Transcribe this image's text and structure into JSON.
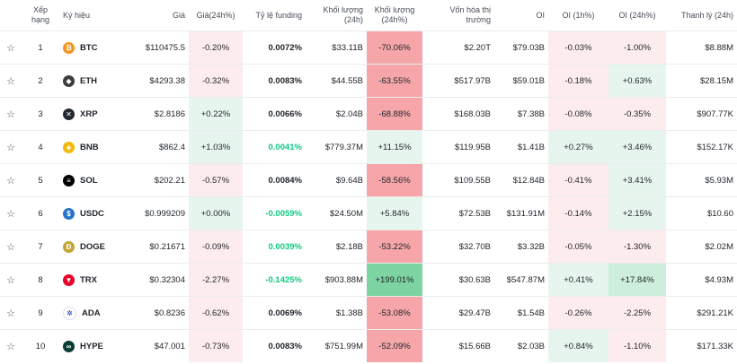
{
  "headers": {
    "rank": "Xếp hạng",
    "symbol": "Ký hiệu",
    "price": "Giá",
    "price_change": "Giá(24h%)",
    "funding": "Tỷ lệ funding",
    "volume": "Khối lượng (24h)",
    "volume_change": "Khối lượng (24h%)",
    "mcap_line1": "Vốn hóa thị",
    "mcap_line2": "trường",
    "oi": "OI",
    "oi_1h": "OI (1h%)",
    "oi_24h": "OI (24h%)",
    "liq": "Thanh lý (24h)"
  },
  "rows": [
    {
      "rank": "1",
      "symbol": "BTC",
      "icon": "bitcoin-icon",
      "icon_color": "#f7931a",
      "icon_glyph": "₿",
      "price": "$110475.5",
      "chg": "-0.20%",
      "chg_cls": "neg1",
      "fund": "0.0072%",
      "fund_pos": false,
      "vol": "$33.11B",
      "volchg": "-70.06%",
      "volchg_cls": "neg3",
      "mcap": "$2.20T",
      "oi": "$79.03B",
      "oi1h": "-0.03%",
      "oi1h_cls": "neg1",
      "oi24": "-1.00%",
      "oi24_cls": "neg1",
      "liq": "$8.88M"
    },
    {
      "rank": "2",
      "symbol": "ETH",
      "icon": "ethereum-icon",
      "icon_color": "#3c3c3d",
      "icon_glyph": "◆",
      "price": "$4293.38",
      "chg": "-0.32%",
      "chg_cls": "neg1",
      "fund": "0.0083%",
      "fund_pos": false,
      "vol": "$44.55B",
      "volchg": "-63.55%",
      "volchg_cls": "neg3",
      "mcap": "$517.97B",
      "oi": "$59.01B",
      "oi1h": "-0.18%",
      "oi1h_cls": "neg1",
      "oi24": "+0.63%",
      "oi24_cls": "pos1",
      "liq": "$28.15M"
    },
    {
      "rank": "3",
      "symbol": "XRP",
      "icon": "xrp-icon",
      "icon_color": "#23292f",
      "icon_glyph": "✕",
      "price": "$2.8186",
      "chg": "+0.22%",
      "chg_cls": "pos1",
      "fund": "0.0066%",
      "fund_pos": false,
      "vol": "$2.04B",
      "volchg": "-68.88%",
      "volchg_cls": "neg3",
      "mcap": "$168.03B",
      "oi": "$7.38B",
      "oi1h": "-0.08%",
      "oi1h_cls": "neg1",
      "oi24": "-0.35%",
      "oi24_cls": "neg1",
      "liq": "$907.77K"
    },
    {
      "rank": "4",
      "symbol": "BNB",
      "icon": "bnb-icon",
      "icon_color": "#f0b90b",
      "icon_glyph": "◈",
      "price": "$862.4",
      "chg": "+1.03%",
      "chg_cls": "pos1",
      "fund": "0.0041%",
      "fund_pos": true,
      "vol": "$779.37M",
      "volchg": "+11.15%",
      "volchg_cls": "pos1",
      "mcap": "$119.95B",
      "oi": "$1.41B",
      "oi1h": "+0.27%",
      "oi1h_cls": "pos1",
      "oi24": "+3.46%",
      "oi24_cls": "pos1",
      "liq": "$152.17K"
    },
    {
      "rank": "5",
      "symbol": "SOL",
      "icon": "solana-icon",
      "icon_color": "#000000",
      "icon_glyph": "≡",
      "price": "$202.21",
      "chg": "-0.57%",
      "chg_cls": "neg1",
      "fund": "0.0084%",
      "fund_pos": false,
      "vol": "$9.64B",
      "volchg": "-58.56%",
      "volchg_cls": "neg3",
      "mcap": "$109.55B",
      "oi": "$12.84B",
      "oi1h": "-0.41%",
      "oi1h_cls": "neg1",
      "oi24": "+3.41%",
      "oi24_cls": "pos1",
      "liq": "$5.93M"
    },
    {
      "rank": "6",
      "symbol": "USDC",
      "icon": "usdc-icon",
      "icon_color": "#2775ca",
      "icon_glyph": "$",
      "price": "$0.999209",
      "chg": "+0.00%",
      "chg_cls": "pos1",
      "fund": "-0.0059%",
      "fund_pos": true,
      "vol": "$24.50M",
      "volchg": "+5.84%",
      "volchg_cls": "pos1",
      "mcap": "$72.53B",
      "oi": "$131.91M",
      "oi1h": "-0.14%",
      "oi1h_cls": "neg1",
      "oi24": "+2.15%",
      "oi24_cls": "pos1",
      "liq": "$10.60"
    },
    {
      "rank": "7",
      "symbol": "DOGE",
      "icon": "dogecoin-icon",
      "icon_color": "#c2a633",
      "icon_glyph": "Ð",
      "price": "$0.21671",
      "chg": "-0.09%",
      "chg_cls": "neg1",
      "fund": "0.0039%",
      "fund_pos": true,
      "vol": "$2.18B",
      "volchg": "-53.22%",
      "volchg_cls": "neg3",
      "mcap": "$32.70B",
      "oi": "$3.32B",
      "oi1h": "-0.05%",
      "oi1h_cls": "neg1",
      "oi24": "-1.30%",
      "oi24_cls": "neg1",
      "liq": "$2.02M"
    },
    {
      "rank": "8",
      "symbol": "TRX",
      "icon": "tron-icon",
      "icon_color": "#eb0029",
      "icon_glyph": "▼",
      "price": "$0.32304",
      "chg": "-2.27%",
      "chg_cls": "neg1",
      "fund": "-0.1425%",
      "fund_pos": true,
      "vol": "$903.88M",
      "volchg": "+199.01%",
      "volchg_cls": "pos3",
      "mcap": "$30.63B",
      "oi": "$547.87M",
      "oi1h": "+0.41%",
      "oi1h_cls": "pos1",
      "oi24": "+17.84%",
      "oi24_cls": "pos2",
      "liq": "$4.93M"
    },
    {
      "rank": "9",
      "symbol": "ADA",
      "icon": "cardano-icon",
      "icon_color": "#ffffff",
      "icon_glyph": "✲",
      "price": "$0.8236",
      "chg": "-0.62%",
      "chg_cls": "neg1",
      "fund": "0.0069%",
      "fund_pos": false,
      "vol": "$1.38B",
      "volchg": "-53.08%",
      "volchg_cls": "neg3",
      "mcap": "$29.47B",
      "oi": "$1.54B",
      "oi1h": "-0.26%",
      "oi1h_cls": "neg1",
      "oi24": "-2.25%",
      "oi24_cls": "neg1",
      "liq": "$291.21K"
    },
    {
      "rank": "10",
      "symbol": "HYPE",
      "icon": "hyperliquid-icon",
      "icon_color": "#0b3b36",
      "icon_glyph": "∞",
      "price": "$47.001",
      "chg": "-0.73%",
      "chg_cls": "neg1",
      "fund": "0.0083%",
      "fund_pos": false,
      "vol": "$751.99M",
      "volchg": "-52.09%",
      "volchg_cls": "neg3",
      "mcap": "$15.66B",
      "oi": "$2.03B",
      "oi1h": "+0.84%",
      "oi1h_cls": "pos1",
      "oi24": "-1.10%",
      "oi24_cls": "neg1",
      "liq": "$171.33K"
    }
  ]
}
